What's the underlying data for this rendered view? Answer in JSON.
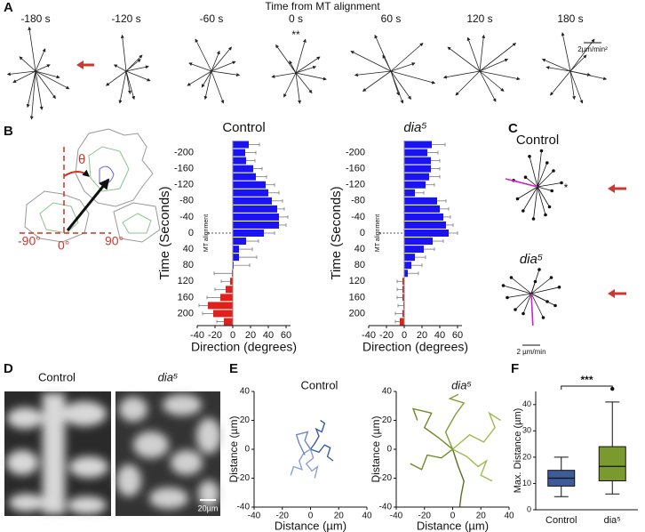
{
  "figure": {
    "panel_labels": [
      "A",
      "B",
      "C",
      "D",
      "E",
      "F"
    ],
    "a_title": "Time from MT alignment",
    "diagram_labels": [
      "θ",
      "-90°",
      "0°",
      "90°"
    ],
    "images": [
      {
        "label": "Control"
      },
      {
        "label": "dia⁵",
        "scale": "20µm"
      }
    ]
  },
  "chart_data": [
    {
      "type": "vector",
      "title": "-180 s",
      "tip": "arrow",
      "color": "#222222",
      "dx": [
        -8,
        12,
        30,
        -28,
        -35,
        25,
        -10,
        42,
        8,
        -20,
        18,
        -5
      ],
      "dy": [
        55,
        28,
        -8,
        -14,
        -4,
        -34,
        -45,
        -22,
        -48,
        18,
        8,
        -60
      ]
    },
    {
      "type": "vector",
      "title": "-120 s",
      "tip": "arrow",
      "color": "#222222",
      "dx": [
        -5,
        20,
        30,
        -25,
        10,
        -15,
        28,
        5,
        -8,
        18
      ],
      "dy": [
        45,
        20,
        -12,
        -18,
        -35,
        8,
        6,
        -28,
        -40,
        15
      ]
    },
    {
      "type": "vector",
      "title": "-60 s",
      "tip": "arrow",
      "color": "#222222",
      "dx": [
        -20,
        25,
        35,
        -30,
        -8,
        15,
        -28,
        30,
        10,
        -12
      ],
      "dy": [
        40,
        30,
        -5,
        -18,
        -35,
        -40,
        10,
        12,
        25,
        -20
      ]
    },
    {
      "type": "vector",
      "title": "0 s",
      "annotation": "**",
      "tip": "arrow",
      "color": "#222222",
      "dx": [
        -25,
        30,
        38,
        -15,
        5,
        20,
        -30,
        12,
        -8,
        25
      ],
      "dy": [
        35,
        20,
        -8,
        -30,
        -38,
        -25,
        -5,
        42,
        15,
        8
      ]
    },
    {
      "type": "vector",
      "title": "60 s",
      "tip": "arrow",
      "color": "#222222",
      "dx": [
        -50,
        40,
        55,
        -35,
        15,
        -20,
        30,
        -45,
        10,
        25,
        -10
      ],
      "dy": [
        25,
        35,
        -15,
        -25,
        -40,
        45,
        10,
        -5,
        -30,
        -35,
        20
      ]
    },
    {
      "type": "vector",
      "title": "120 s",
      "tip": "arrow",
      "color": "#222222",
      "dx": [
        -40,
        45,
        50,
        -30,
        20,
        -15,
        35,
        -45,
        5,
        30
      ],
      "dy": [
        30,
        35,
        -10,
        -30,
        -38,
        42,
        15,
        -8,
        45,
        -25
      ]
    },
    {
      "type": "vector",
      "title": "180 s",
      "scale_label": "2µm/min²",
      "tip": "arrow",
      "color": "#222222",
      "dx": [
        -35,
        30,
        45,
        -25,
        15,
        -10,
        25,
        -30,
        5,
        20
      ],
      "dy": [
        15,
        40,
        -10,
        -30,
        -40,
        48,
        -5,
        5,
        -35,
        20
      ]
    },
    {
      "type": "vector",
      "title": "Control",
      "annotation": "*",
      "tip": "dot",
      "color": "#111111",
      "mean_color": "#d020d0",
      "mean": [
        -40,
        10
      ],
      "dx": [
        -30,
        -18,
        10,
        20,
        -10,
        5,
        15,
        -25,
        30,
        -5,
        12,
        18,
        -15
      ],
      "dy": [
        8,
        -30,
        -35,
        20,
        38,
        45,
        -25,
        -15,
        5,
        -40,
        30,
        -5,
        12
      ]
    },
    {
      "type": "vector",
      "title": "dia⁵",
      "scale_label": "2 µm/min",
      "tip": "dot",
      "color": "#111111",
      "mean_color": "#d020d0",
      "mean": [
        2,
        -40
      ],
      "dx": [
        -35,
        -20,
        25,
        35,
        15,
        -30,
        10,
        30,
        -10,
        5,
        20,
        -25
      ],
      "dy": [
        10,
        -20,
        20,
        8,
        -30,
        -5,
        30,
        -15,
        -25,
        15,
        -10,
        20
      ]
    },
    {
      "type": "hbar",
      "title": "Control",
      "ylabel": "Time (Seconds)",
      "xlabel": "Direction (degrees)",
      "annotation": "MT alignment",
      "color_pos": "#1a14f0",
      "color_neg": "#e0201b",
      "y": [
        -220,
        -200,
        -180,
        -160,
        -140,
        -120,
        -100,
        -80,
        -60,
        -40,
        -20,
        0,
        20,
        40,
        60,
        80,
        100,
        120,
        140,
        160,
        180,
        200,
        220
      ],
      "values": [
        18,
        14,
        15,
        23,
        26,
        37,
        40,
        44,
        50,
        52,
        52,
        35,
        15,
        7,
        7,
        1,
        -1,
        -3,
        -8,
        -14,
        -28,
        -22,
        -10
      ],
      "errors": [
        12,
        12,
        10,
        10,
        12,
        10,
        12,
        12,
        8,
        10,
        8,
        12,
        14,
        15,
        20,
        18,
        20,
        10,
        12,
        15,
        10,
        12,
        8
      ],
      "xlim": [
        -40,
        65
      ],
      "xticks": [
        -40,
        -20,
        0,
        20,
        40,
        60
      ],
      "ylim": [
        -230,
        230
      ],
      "yticks": [
        -200,
        -160,
        -120,
        -80,
        -40,
        0,
        40,
        80,
        120,
        160,
        200
      ]
    },
    {
      "type": "hbar",
      "title": "dia⁵",
      "ylabel": "Time (Seconds)",
      "xlabel": "Direction (degrees)",
      "annotation": "MT alignment",
      "color_pos": "#1a14f0",
      "color_neg": "#e0201b",
      "y": [
        -220,
        -200,
        -180,
        -160,
        -140,
        -120,
        -100,
        -80,
        -60,
        -40,
        -20,
        0,
        20,
        40,
        60,
        80,
        100,
        120,
        140,
        160,
        180,
        200,
        220
      ],
      "values": [
        31,
        26,
        30,
        30,
        28,
        24,
        12,
        37,
        40,
        44,
        47,
        50,
        32,
        22,
        12,
        8,
        4,
        -2,
        -2,
        -2,
        -1,
        -2,
        -5
      ],
      "errors": [
        15,
        12,
        10,
        10,
        12,
        10,
        10,
        10,
        10,
        8,
        8,
        10,
        12,
        12,
        12,
        12,
        12,
        6,
        6,
        6,
        6,
        8,
        5
      ],
      "xlim": [
        -40,
        65
      ],
      "xticks": [
        -40,
        -20,
        0,
        20,
        40,
        60
      ],
      "ylim": [
        -230,
        230
      ],
      "yticks": [
        -200,
        -160,
        -120,
        -80,
        -40,
        0,
        40,
        80,
        120,
        160,
        200
      ]
    },
    {
      "type": "track",
      "title": "Control",
      "xlabel": "Distance (µm)",
      "ylabel": "Distance (µm)",
      "xlim": [
        -40,
        40
      ],
      "ylim": [
        -40,
        40
      ],
      "xticks": [
        -40,
        -20,
        0,
        20,
        40
      ],
      "yticks": [
        -40,
        -20,
        0,
        20,
        40
      ],
      "series": [
        {
          "color": "#3c5ba6",
          "x": [
            0,
            3,
            6,
            4,
            8,
            10,
            7
          ],
          "y": [
            0,
            4,
            9,
            14,
            12,
            18,
            20
          ]
        },
        {
          "color": "#8aa0d6",
          "x": [
            0,
            -5,
            -8,
            -6,
            -12,
            -14
          ],
          "y": [
            0,
            -3,
            -8,
            -14,
            -12,
            -18
          ]
        },
        {
          "color": "#3c5ba6",
          "x": [
            0,
            6,
            10,
            14,
            12,
            16
          ],
          "y": [
            0,
            -2,
            3,
            1,
            -5,
            -8
          ]
        },
        {
          "color": "#6e86c8",
          "x": [
            0,
            -4,
            -2,
            -10,
            -8,
            -4
          ],
          "y": [
            0,
            6,
            12,
            10,
            4,
            -4
          ]
        },
        {
          "color": "#8aa0d6",
          "x": [
            0,
            2,
            -3,
            1,
            5,
            3
          ],
          "y": [
            0,
            -6,
            -10,
            -15,
            -12,
            -20
          ]
        }
      ]
    },
    {
      "type": "track",
      "title": "dia⁵",
      "xlabel": "Distance (µm)",
      "ylabel": "Distance (µm)",
      "xlim": [
        -40,
        40
      ],
      "ylim": [
        -40,
        40
      ],
      "xticks": [
        -40,
        -20,
        0,
        20,
        40
      ],
      "yticks": [
        -40,
        -20,
        0,
        20,
        40
      ],
      "series": [
        {
          "color": "#6e8a25",
          "x": [
            0,
            -10,
            -20,
            -15,
            -28,
            -25
          ],
          "y": [
            0,
            8,
            15,
            25,
            28,
            20
          ]
        },
        {
          "color": "#9cbc4e",
          "x": [
            0,
            12,
            22,
            30,
            26,
            34
          ],
          "y": [
            0,
            10,
            5,
            15,
            25,
            20
          ]
        },
        {
          "color": "#6e8a25",
          "x": [
            0,
            -8,
            -18,
            -22,
            -30
          ],
          "y": [
            0,
            -6,
            -4,
            -14,
            -10
          ]
        },
        {
          "color": "#5a6e20",
          "x": [
            0,
            4,
            8,
            6,
            5
          ],
          "y": [
            0,
            -12,
            -22,
            -32,
            -40
          ]
        },
        {
          "color": "#9cbc4e",
          "x": [
            0,
            10,
            18,
            24,
            20,
            28
          ],
          "y": [
            0,
            -5,
            -12,
            -8,
            -18,
            -22
          ]
        },
        {
          "color": "#7f9e34",
          "x": [
            0,
            -5,
            2,
            8,
            -2,
            4
          ],
          "y": [
            0,
            12,
            24,
            32,
            35,
            38
          ]
        }
      ]
    },
    {
      "type": "box",
      "categories": [
        "Control",
        "dia⁵"
      ],
      "ylabel": "Max. Distance (µm)",
      "annotation": "***",
      "colors": [
        "#3d5a99",
        "#7b9a2e"
      ],
      "boxes": [
        {
          "min": 5,
          "q1": 9,
          "median": 12,
          "q3": 15,
          "max": 20
        },
        {
          "min": 6,
          "q1": 11,
          "median": 16.5,
          "q3": 24,
          "max": 41,
          "outliers": [
            46
          ]
        }
      ],
      "ylim": [
        0,
        45
      ],
      "yticks": [
        0,
        10,
        20,
        30,
        40
      ]
    }
  ]
}
